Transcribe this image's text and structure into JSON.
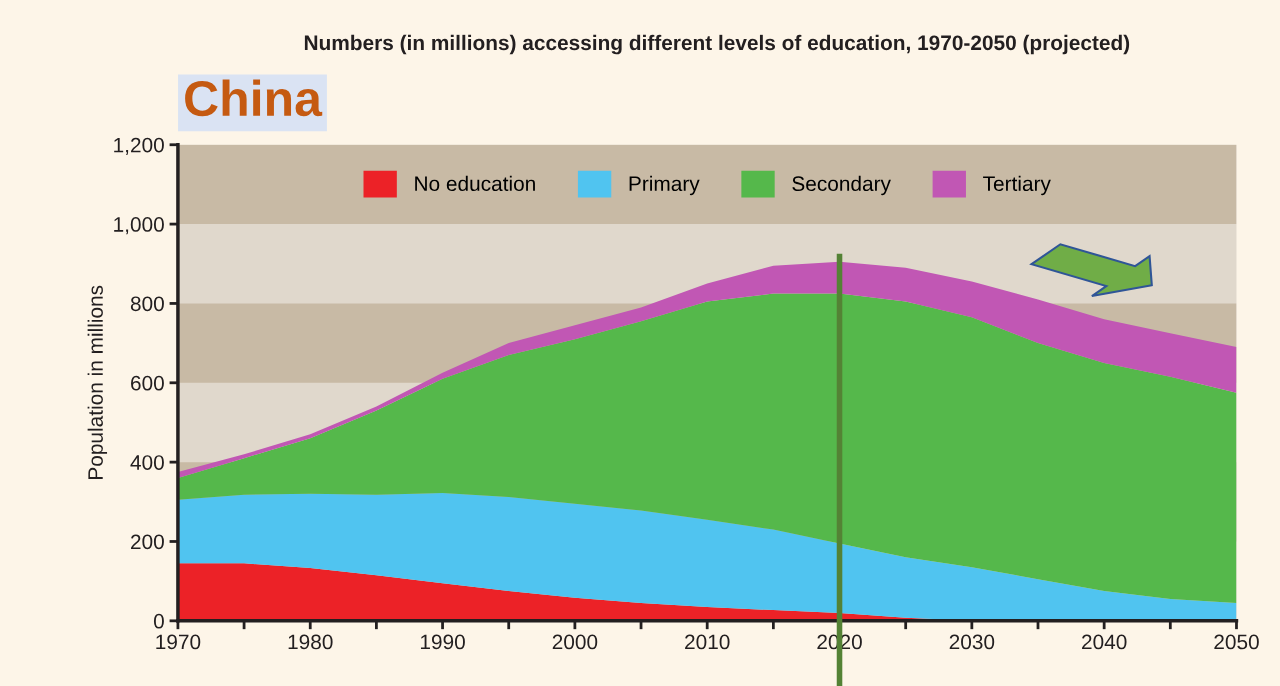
{
  "chart_data": {
    "type": "area",
    "stacked": true,
    "title": "Numbers (in millions) accessing different levels of education, 1970-2050 (projected)",
    "subtitle": "China",
    "ylabel": "Population in millions",
    "x": [
      1970,
      1975,
      1980,
      1985,
      1990,
      1995,
      2000,
      2005,
      2010,
      2015,
      2020,
      2025,
      2030,
      2035,
      2040,
      2045,
      2050
    ],
    "series": [
      {
        "name": "No education",
        "color": "#ec2227",
        "values": [
          145,
          145,
          133,
          115,
          95,
          75,
          58,
          45,
          35,
          27,
          20,
          8,
          0,
          0,
          0,
          0,
          0
        ]
      },
      {
        "name": "Primary",
        "color": "#50c4f0",
        "values": [
          160,
          173,
          187,
          203,
          227,
          237,
          237,
          233,
          220,
          203,
          175,
          152,
          135,
          105,
          75,
          55,
          45
        ]
      },
      {
        "name": "Secondary",
        "color": "#55b84b",
        "values": [
          55,
          92,
          140,
          212,
          288,
          358,
          415,
          477,
          550,
          595,
          630,
          645,
          630,
          595,
          575,
          560,
          530
        ]
      },
      {
        "name": "Tertiary",
        "color": "#c157b4",
        "values": [
          15,
          10,
          10,
          10,
          15,
          30,
          35,
          35,
          45,
          70,
          80,
          85,
          90,
          110,
          110,
          110,
          115
        ]
      }
    ],
    "xlim": [
      1970,
      2050
    ],
    "xticks": [
      1970,
      {
        "value": 1975,
        "label": null
      },
      1980,
      {
        "value": 1985,
        "label": null
      },
      1990,
      {
        "value": 1995,
        "label": null
      },
      2000,
      {
        "value": 2005,
        "label": null
      },
      2010,
      {
        "value": 2015,
        "label": null
      },
      2020,
      {
        "value": 2025,
        "label": null
      },
      2030,
      {
        "value": 2035,
        "label": null
      },
      2040,
      {
        "value": 2045,
        "label": null
      },
      2050
    ],
    "ylim": [
      0,
      1200
    ],
    "yticks": [
      0,
      200,
      400,
      600,
      800,
      {
        "value": 1000,
        "label": "1,000"
      },
      {
        "value": 1200,
        "label": "1,200"
      }
    ],
    "bands": [
      {
        "axis": "y",
        "from": 1000,
        "to": 1200,
        "color": "#c8baa5"
      },
      {
        "axis": "y",
        "from": 600,
        "to": 800,
        "color": "#c8baa5"
      },
      {
        "axis": "y",
        "from": 200,
        "to": 400,
        "color": "#c8baa5"
      }
    ],
    "ref_lines": [
      {
        "axis": "x",
        "value": 2020,
        "color": "#548235"
      }
    ],
    "legend": "top",
    "grid": false
  }
}
